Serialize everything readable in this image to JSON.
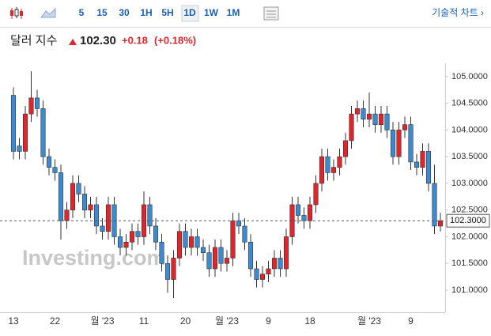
{
  "toolbar": {
    "intervals": [
      "5",
      "15",
      "30",
      "1H",
      "5H",
      "1D",
      "1W",
      "1M"
    ],
    "chart_link": "기술적 차트 ›"
  },
  "header": {
    "name": "달러 지수",
    "price": "102.30",
    "change": "+0.18",
    "change_pct": "(+0.18%)"
  },
  "chart_data": {
    "type": "candlestick",
    "watermark": "Investing.com",
    "up_color": "#e0252d",
    "down_color": "#3d8ad0",
    "categories": [
      "13",
      null,
      null,
      null,
      null,
      null,
      null,
      "22",
      null,
      null,
      null,
      null,
      null,
      null,
      null,
      "월 '23",
      null,
      null,
      null,
      null,
      null,
      null,
      "11",
      null,
      null,
      null,
      null,
      null,
      null,
      "20",
      null,
      null,
      null,
      null,
      null,
      null,
      "월 '23",
      null,
      null,
      null,
      null,
      null,
      null,
      "9",
      null,
      null,
      null,
      null,
      null,
      null,
      "18",
      null,
      null,
      null,
      null,
      null,
      null,
      null,
      null,
      null,
      "월 '23",
      null,
      null,
      null,
      null,
      null,
      null,
      "9",
      null,
      null,
      null,
      null,
      null
    ],
    "open": [
      104.65,
      103.7,
      103.6,
      104.3,
      104.6,
      104.4,
      103.5,
      103.3,
      103.2,
      102.3,
      102.5,
      103.0,
      102.8,
      102.5,
      102.6,
      102.2,
      102.1,
      102.6,
      102.0,
      101.8,
      101.9,
      102.1,
      102.0,
      102.6,
      102.2,
      101.9,
      101.5,
      101.2,
      101.6,
      102.1,
      101.8,
      102.0,
      101.8,
      101.7,
      101.4,
      101.8,
      101.5,
      101.6,
      102.3,
      102.2,
      101.9,
      101.4,
      101.2,
      101.3,
      101.4,
      101.6,
      101.4,
      102.0,
      102.6,
      102.4,
      102.3,
      102.6,
      103.0,
      103.5,
      103.2,
      103.3,
      103.5,
      103.8,
      104.3,
      104.4,
      104.2,
      104.3,
      104.1,
      104.3,
      104.0,
      103.5,
      104.0,
      104.1,
      103.4,
      103.3,
      103.6,
      103.0,
      102.2
    ],
    "high": [
      104.8,
      103.85,
      104.45,
      105.1,
      104.75,
      104.55,
      103.65,
      103.45,
      103.35,
      102.65,
      103.15,
      103.15,
      102.95,
      102.75,
      102.75,
      102.35,
      102.75,
      102.75,
      102.15,
      102.05,
      102.25,
      102.25,
      102.85,
      102.75,
      102.35,
      102.05,
      101.65,
      101.75,
      102.25,
      102.25,
      102.15,
      102.15,
      101.95,
      101.85,
      101.95,
      101.95,
      101.75,
      102.45,
      102.45,
      102.35,
      102.05,
      101.55,
      101.45,
      101.55,
      101.75,
      101.75,
      102.15,
      102.75,
      102.75,
      102.55,
      102.75,
      103.15,
      103.65,
      103.65,
      103.45,
      103.65,
      103.95,
      104.45,
      104.55,
      104.55,
      104.7,
      104.45,
      104.45,
      104.45,
      104.15,
      104.15,
      104.25,
      104.25,
      103.55,
      103.75,
      103.75,
      103.35,
      102.45
    ],
    "low": [
      103.45,
      103.45,
      103.45,
      104.15,
      104.25,
      103.35,
      103.15,
      103.05,
      101.95,
      102.15,
      102.35,
      102.65,
      102.35,
      102.35,
      102.05,
      101.95,
      101.95,
      101.85,
      101.65,
      101.65,
      101.75,
      101.85,
      101.85,
      102.05,
      101.75,
      101.35,
      100.95,
      100.85,
      101.45,
      101.65,
      101.65,
      101.65,
      101.55,
      101.25,
      101.25,
      101.35,
      101.35,
      101.45,
      102.05,
      101.75,
      101.25,
      101.05,
      101.05,
      101.15,
      101.25,
      101.25,
      101.25,
      101.85,
      102.25,
      102.15,
      102.15,
      102.45,
      102.85,
      103.05,
      103.05,
      103.15,
      103.35,
      103.65,
      104.15,
      104.05,
      104.05,
      103.95,
      103.95,
      103.85,
      103.35,
      103.35,
      103.85,
      103.25,
      103.15,
      103.15,
      102.85,
      102.05,
      102.1
    ],
    "close": [
      103.6,
      103.6,
      104.3,
      104.6,
      104.4,
      103.5,
      103.3,
      103.2,
      102.3,
      102.5,
      103.0,
      102.8,
      102.5,
      102.6,
      102.2,
      102.1,
      102.6,
      102.0,
      101.8,
      101.9,
      102.1,
      102.0,
      102.6,
      102.2,
      101.9,
      101.5,
      101.2,
      101.6,
      102.1,
      101.8,
      102.0,
      101.8,
      101.7,
      101.4,
      101.8,
      101.5,
      101.6,
      102.3,
      102.2,
      101.9,
      101.4,
      101.2,
      101.3,
      101.4,
      101.6,
      101.4,
      102.0,
      102.6,
      102.4,
      102.3,
      102.6,
      103.0,
      103.5,
      103.2,
      103.3,
      103.5,
      103.8,
      104.3,
      104.4,
      104.2,
      104.3,
      104.1,
      104.3,
      104.0,
      103.5,
      104.0,
      104.1,
      103.4,
      103.3,
      103.6,
      103.0,
      102.2,
      102.3
    ],
    "price_line": {
      "value": 102.3,
      "label": "102.3000"
    },
    "ylim": [
      100.6,
      105.25
    ],
    "yticks": [
      {
        "value": 101,
        "label": "101.0000"
      },
      {
        "value": 101.5,
        "label": "101.5000"
      },
      {
        "value": 102,
        "label": "102.0000"
      },
      {
        "value": 102.5,
        "label": "102.5000"
      },
      {
        "value": 103,
        "label": "103.0000"
      },
      {
        "value": 103.5,
        "label": "103.5000"
      },
      {
        "value": 104,
        "label": "104.0000"
      },
      {
        "value": 104.5,
        "label": "104.5000"
      },
      {
        "value": 105,
        "label": "105.0000"
      }
    ]
  }
}
